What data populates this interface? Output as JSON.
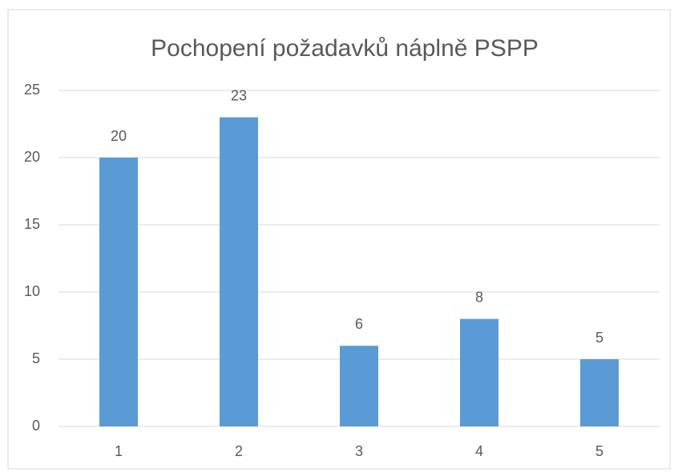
{
  "chart_data": {
    "type": "bar",
    "title": "Pochopení požadavků náplně PSPP",
    "categories": [
      "1",
      "2",
      "3",
      "4",
      "5"
    ],
    "values": [
      20,
      23,
      6,
      8,
      5
    ],
    "color": "#5b9bd5",
    "ylim": [
      0,
      25
    ],
    "yticks": [
      0,
      5,
      10,
      15,
      20,
      25
    ],
    "grid": true,
    "data_labels": true
  }
}
